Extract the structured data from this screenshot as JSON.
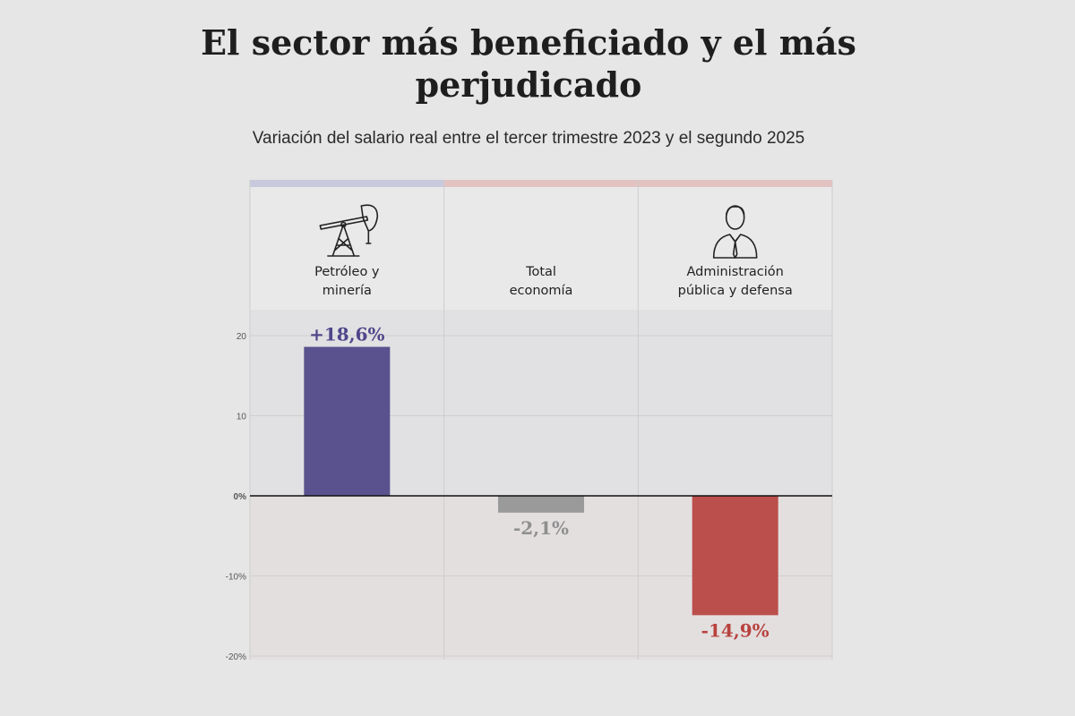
{
  "chart_data": {
    "type": "bar",
    "title": "El sector más beneficiado y el más perjudicado",
    "subtitle": "Variación del salario real entre el tercer trimestre 2023 y el segundo 2025",
    "categories": [
      [
        "Petróleo y",
        "minería"
      ],
      [
        "Total",
        "economía"
      ],
      [
        "Administración",
        "pública y defensa"
      ]
    ],
    "category_icons": [
      "oil-pump-icon",
      "",
      "official-person-icon"
    ],
    "values": [
      18.6,
      -2.1,
      -14.9
    ],
    "value_labels": [
      "+18,6%",
      "-2,1%",
      "-14,9%"
    ],
    "bar_colors": [
      "#59528e",
      "#9a9a9a",
      "#bb4f4b"
    ],
    "label_colors": [
      "#4f468a",
      "#8f8f8f",
      "#b8423e"
    ],
    "top_strip_colors": [
      "#c9c9dd",
      "#e3c2c2",
      "#e3c2c2"
    ],
    "ylim": [
      -20,
      22
    ],
    "yticks": [
      {
        "value": 20,
        "label": "20"
      },
      {
        "value": 10,
        "label": "10"
      },
      {
        "value": 0,
        "label": "0%"
      },
      {
        "value": -10,
        "label": "-10%"
      },
      {
        "value": -20,
        "label": "-20%"
      }
    ],
    "xlabel": "",
    "ylabel": "",
    "grid": true
  }
}
